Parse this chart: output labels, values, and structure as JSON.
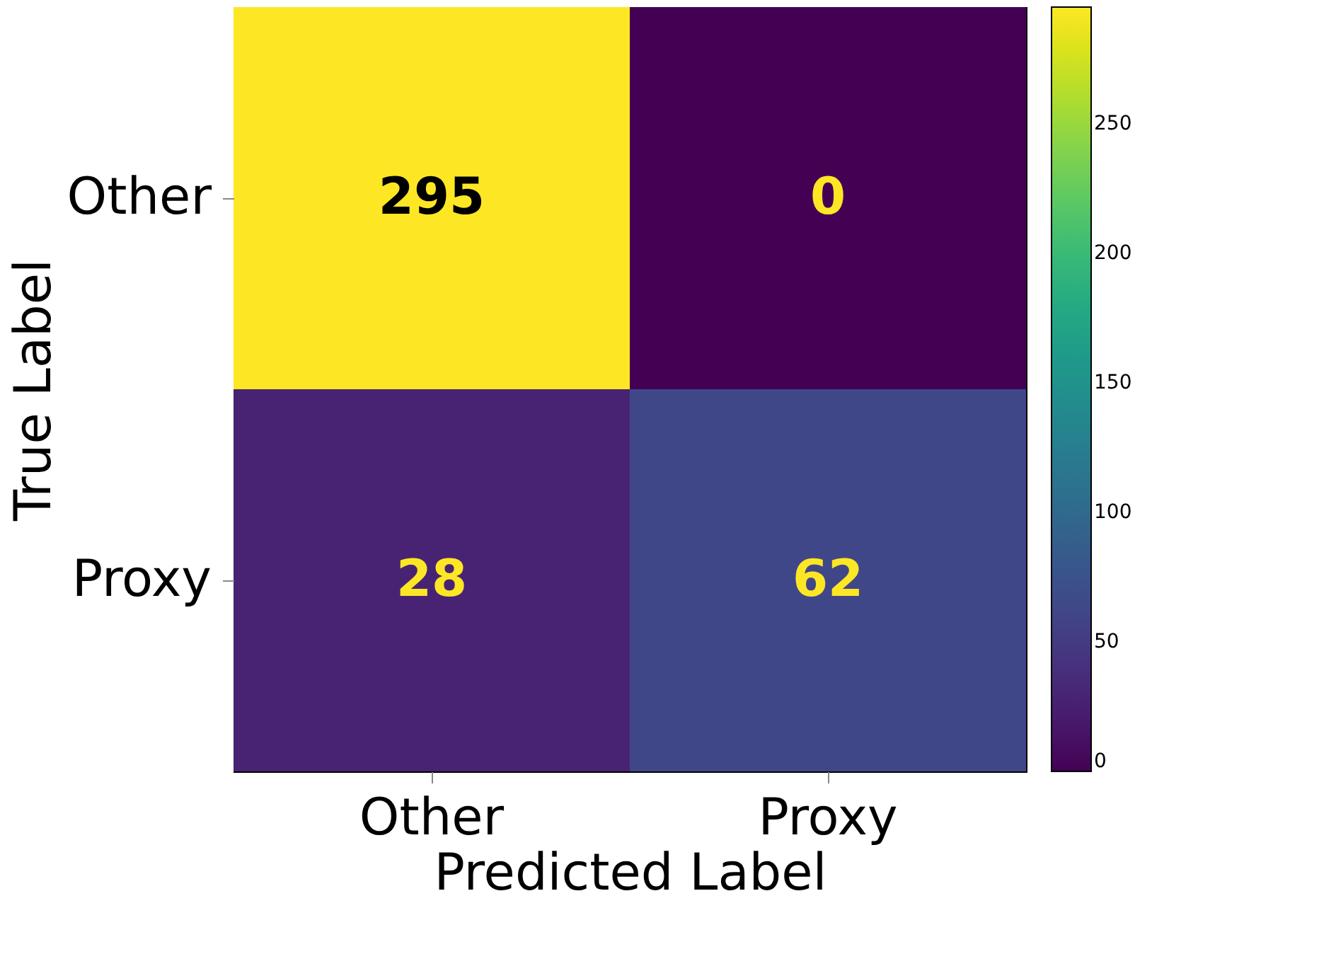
{
  "chart_data": {
    "type": "heatmap",
    "xlabel": "Predicted Label",
    "ylabel": "True Label",
    "categories": [
      "Other",
      "Proxy"
    ],
    "y_categories": [
      "Other",
      "Proxy"
    ],
    "cells": [
      [
        295,
        0
      ],
      [
        28,
        62
      ]
    ],
    "data_labels": true,
    "clim": [
      0,
      295
    ],
    "cticks": [
      0,
      50,
      100,
      150,
      200,
      250
    ]
  }
}
